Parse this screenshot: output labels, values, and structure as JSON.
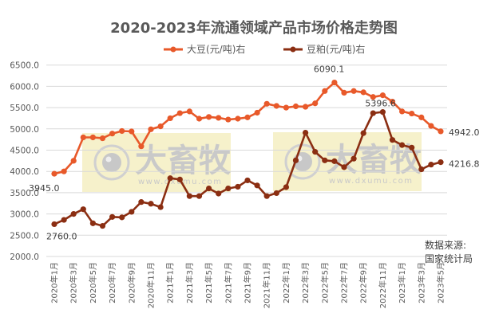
{
  "chart_data": {
    "type": "line",
    "title": "2020-2023年流通领域产品市场价格走势图",
    "xlabel": "",
    "ylabel": "",
    "ylim": [
      2000,
      6500
    ],
    "yticks": [
      "6500.0",
      "6000.0",
      "5500.0",
      "5000.0",
      "4500.0",
      "4000.0",
      "3500.0",
      "3000.0",
      "2500.0",
      "2000.0"
    ],
    "grid": true,
    "legend_position": "top",
    "x": [
      "2020年1月",
      "2020年2月",
      "2020年3月",
      "2020年4月",
      "2020年5月",
      "2020年6月",
      "2020年7月",
      "2020年8月",
      "2020年9月",
      "2020年10月",
      "2020年11月",
      "2020年12月",
      "2021年1月",
      "2021年2月",
      "2021年3月",
      "2021年4月",
      "2021年5月",
      "2021年6月",
      "2021年7月",
      "2021年8月",
      "2021年9月",
      "2021年10月",
      "2021年11月",
      "2021年12月",
      "2022年1月",
      "2022年2月",
      "2022年3月",
      "2022年4月",
      "2022年5月",
      "2022年6月",
      "2022年7月",
      "2022年8月",
      "2022年9月",
      "2022年10月",
      "2022年11月",
      "2022年12月",
      "2023年1月",
      "2023年2月",
      "2023年3月",
      "2023年4月",
      "2023年5月"
    ],
    "xtick_labels": [
      "2020年1月",
      "2020年3月",
      "2020年5月",
      "2020年7月",
      "2020年9月",
      "2020年11月",
      "2021年1月",
      "2021年3月",
      "2021年5月",
      "2021年7月",
      "2021年9月",
      "2021年11月",
      "2022年1月",
      "2022年3月",
      "2022年5月",
      "2022年7月",
      "2022年9月",
      "2022年11月",
      "2023年1月",
      "2023年3月",
      "2023年5月"
    ],
    "series": [
      {
        "name": "大豆(元/吨)右",
        "color": "#E8592A",
        "values": [
          3945.0,
          4000,
          4250,
          4800,
          4800,
          4780,
          4890,
          4950,
          4940,
          4590,
          4990,
          5060,
          5250,
          5370,
          5410,
          5240,
          5280,
          5260,
          5220,
          5240,
          5270,
          5380,
          5590,
          5540,
          5500,
          5530,
          5520,
          5600,
          5890,
          6090.1,
          5850,
          5890,
          5860,
          5750,
          5790,
          5640,
          5410,
          5360,
          5270,
          5070,
          4942.0
        ],
        "labels": [
          {
            "index": 0,
            "text": "3945.0"
          },
          {
            "index": 29,
            "text": "6090.1"
          },
          {
            "index": 40,
            "text": "4942.0"
          }
        ]
      },
      {
        "name": "豆粕(元/吨)右",
        "color": "#8B2E12",
        "values": [
          2760.0,
          2860,
          3000,
          3110,
          2780,
          2720,
          2930,
          2920,
          3050,
          3280,
          3240,
          3160,
          3840,
          3810,
          3420,
          3420,
          3600,
          3480,
          3600,
          3640,
          3790,
          3670,
          3420,
          3490,
          3630,
          4260,
          4910,
          4460,
          4260,
          4240,
          4100,
          4300,
          4900,
          5370,
          5396.6,
          4740,
          4620,
          4560,
          4050,
          4160,
          4216.8
        ],
        "labels": [
          {
            "index": 0,
            "text": "2760.0"
          },
          {
            "index": 34,
            "text": "5396.6"
          },
          {
            "index": 40,
            "text": "4216.8"
          }
        ]
      }
    ],
    "annotations": [
      "数据来源:",
      "国家统计局"
    ]
  },
  "watermark": {
    "brand": "大畜牧",
    "url": "www.dxumu.com"
  },
  "source": {
    "line1": "数据来源:",
    "line2": "国家统计局"
  }
}
